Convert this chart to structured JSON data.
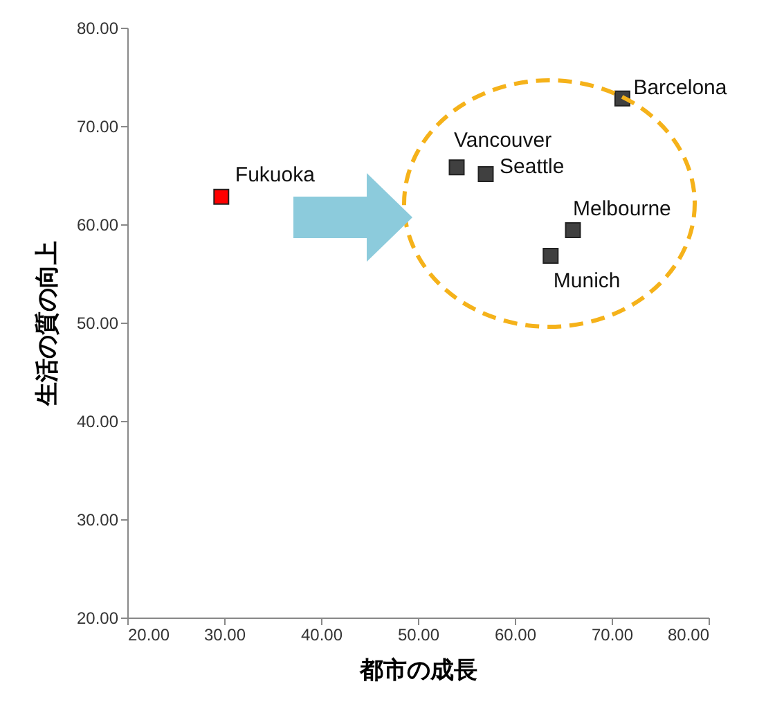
{
  "chart_data": {
    "type": "scatter",
    "xlabel": "都市の成長",
    "ylabel": "生活の質の向上",
    "marker": "square",
    "grid": false,
    "xlim": [
      20,
      80
    ],
    "xticks": [
      {
        "value": 20,
        "label": "20.00"
      },
      {
        "value": 30,
        "label": "30.00"
      },
      {
        "value": 40,
        "label": "40.00"
      },
      {
        "value": 50,
        "label": "50.00"
      },
      {
        "value": 60,
        "label": "60.00"
      },
      {
        "value": 70,
        "label": "70.00"
      },
      {
        "value": 80,
        "label": "80.00"
      }
    ],
    "ylim": [
      20,
      80
    ],
    "yticks": [
      {
        "value": 20,
        "label": "20.00"
      },
      {
        "value": 30,
        "label": "30.00"
      },
      {
        "value": 40,
        "label": "40.00"
      },
      {
        "value": 50,
        "label": "50.00"
      },
      {
        "value": 60,
        "label": "60.00"
      },
      {
        "value": 70,
        "label": "70.00"
      },
      {
        "value": 80,
        "label": "80.00"
      }
    ],
    "series": [
      {
        "name": "Fukuoka",
        "color": "#ff0000",
        "x": [
          29.7
        ],
        "values": [
          62.8
        ]
      },
      {
        "name": "Vancouver",
        "color": "#404040",
        "x": [
          54.0
        ],
        "values": [
          65.8
        ]
      },
      {
        "name": "Seattle",
        "color": "#404040",
        "x": [
          57.0
        ],
        "values": [
          65.1
        ]
      },
      {
        "name": "Barcelona",
        "color": "#404040",
        "x": [
          71.1
        ],
        "values": [
          72.8
        ]
      },
      {
        "name": "Melbourne",
        "color": "#404040",
        "x": [
          66.0
        ],
        "values": [
          59.4
        ]
      },
      {
        "name": "Munich",
        "color": "#404040",
        "x": [
          63.7
        ],
        "values": [
          56.8
        ]
      }
    ]
  }
}
